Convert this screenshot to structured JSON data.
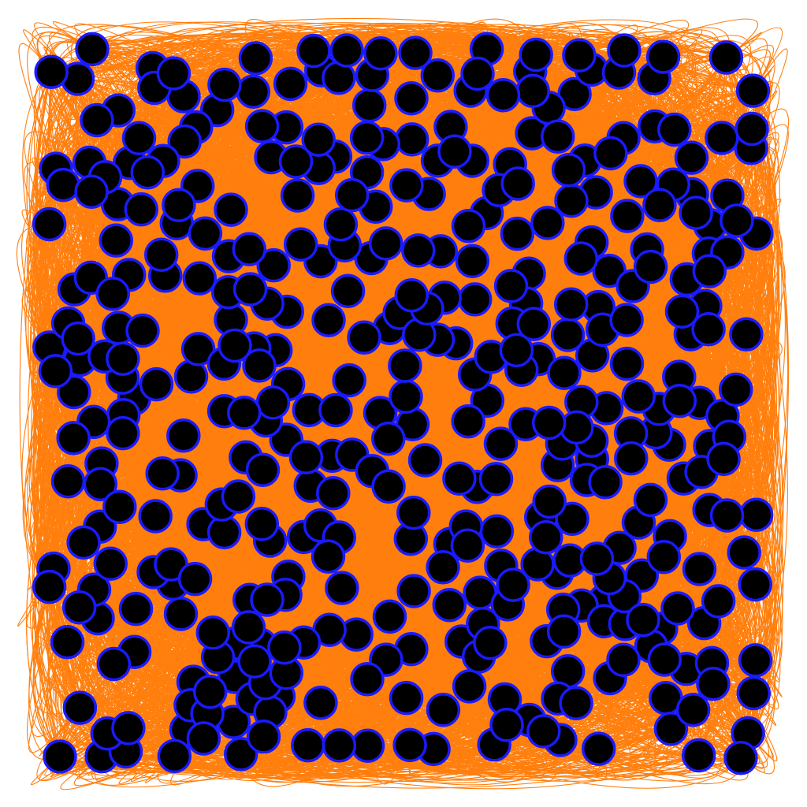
{
  "chart_data": {
    "type": "network",
    "title": "",
    "xlabel": "",
    "ylabel": "",
    "node_count": 420,
    "colors": {
      "edge": "#ff7f0e",
      "node_fill": "#000000",
      "node_stroke": "#1a1aff",
      "background": "#ffffff"
    },
    "edges_per_node": 30,
    "labels_shown": false,
    "seed": 7
  }
}
